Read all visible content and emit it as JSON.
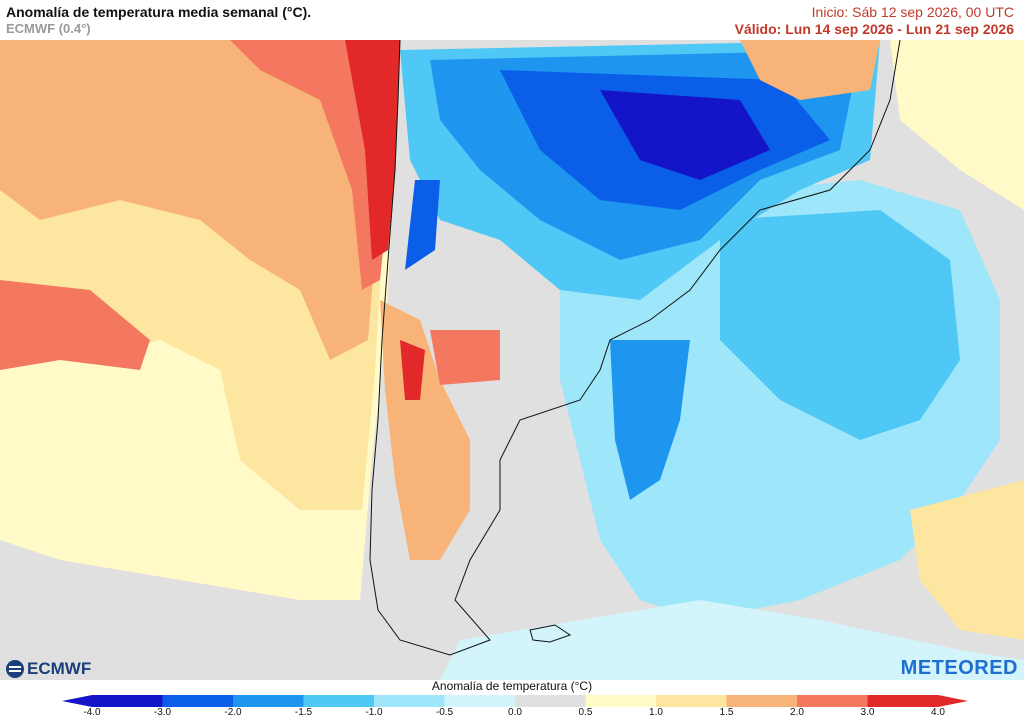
{
  "header": {
    "title": "Anomalía de temperatura media semanal (°C).",
    "model": "ECMWF (0.4°)",
    "init": "Inicio: Sáb 12 sep 2026, 00 UTC",
    "valid": "Válido: Lun 14 sep 2026 - Lun 21 sep 2026"
  },
  "logos": {
    "left": "ECMWF",
    "right": "METEORED"
  },
  "legend": {
    "title": "Anomalía de temperatura (°C)",
    "ticks": [
      "-4.0",
      "-3.0",
      "-2.0",
      "-1.5",
      "-1.0",
      "-0.5",
      "0.0",
      "0.5",
      "1.0",
      "1.5",
      "2.0",
      "3.0",
      "4.0"
    ],
    "colors": [
      "#1414c8",
      "#0a5ee8",
      "#1e96f0",
      "#50c8f5",
      "#9ee6fa",
      "#d2f4fa",
      "#e0e0e0",
      "#fffac8",
      "#fde6a0",
      "#f8b478",
      "#f47860",
      "#e22828"
    ]
  }
}
